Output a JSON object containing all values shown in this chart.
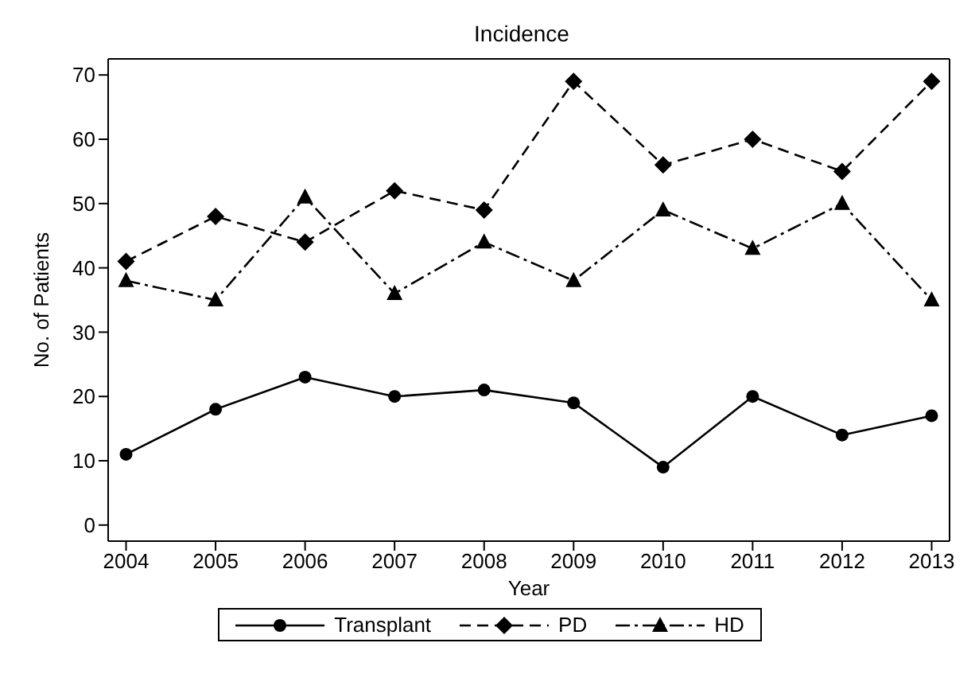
{
  "chart_data": {
    "type": "line",
    "title": "Incidence",
    "xlabel": "Year",
    "ylabel": "No. of Patients",
    "x": [
      2004,
      2005,
      2006,
      2007,
      2008,
      2009,
      2010,
      2011,
      2012,
      2013
    ],
    "xlim": [
      2003.8,
      2013.2
    ],
    "xticks": [
      2004,
      2005,
      2006,
      2007,
      2008,
      2009,
      2010,
      2011,
      2012,
      2013
    ],
    "ylim": [
      -2.5,
      72.5
    ],
    "yticks": [
      0,
      10,
      20,
      30,
      40,
      50,
      60,
      70
    ],
    "legend": "bottom",
    "grid": false,
    "series": [
      {
        "name": "Transplant",
        "color": "#000000",
        "marker": "circle",
        "line_style": "solid",
        "values": [
          11,
          18,
          23,
          20,
          21,
          19,
          9,
          20,
          14,
          17
        ]
      },
      {
        "name": "PD",
        "color": "#000000",
        "marker": "diamond",
        "line_style": "dashed",
        "values": [
          41,
          48,
          44,
          52,
          49,
          69,
          56,
          60,
          55,
          69
        ]
      },
      {
        "name": "HD",
        "color": "#000000",
        "marker": "triangle",
        "line_style": "dashdot",
        "values": [
          38,
          35,
          51,
          36,
          44,
          38,
          49,
          43,
          50,
          35
        ]
      }
    ]
  }
}
